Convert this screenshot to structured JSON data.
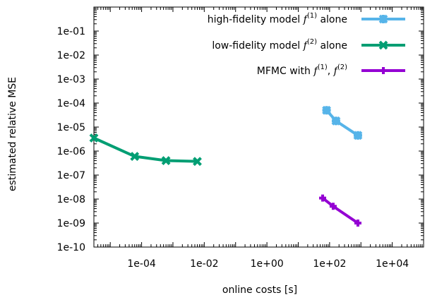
{
  "chart_data": {
    "type": "line",
    "title": "",
    "xlabel": "online costs [s]",
    "ylabel": "estimated relative MSE",
    "xscale": "log",
    "yscale": "log",
    "xlim": [
      3e-06,
      100000
    ],
    "ylim": [
      1e-10,
      1
    ],
    "x_ticks": [
      0.0001,
      0.01,
      1,
      100,
      10000
    ],
    "x_tick_labels": [
      "1e-04",
      "1e-02",
      "1e+00",
      "1e+02",
      "1e+04"
    ],
    "y_ticks": [
      1e-10,
      1e-09,
      1e-08,
      1e-07,
      1e-06,
      1e-05,
      0.0001,
      0.001,
      0.01,
      0.1
    ],
    "y_tick_labels": [
      "1e-10",
      "1e-09",
      "1e-08",
      "1e-07",
      "1e-06",
      "1e-05",
      "1e-04",
      "1e-03",
      "1e-02",
      "1e-01"
    ],
    "grid": false,
    "legend_position": "top-right",
    "series": [
      {
        "name": "high-fidelity model f(1) alone",
        "legend_text": "high-fidelity model ",
        "legend_math": "f",
        "legend_sup": "(1)",
        "legend_suffix": " alone",
        "color": "#56b4e9",
        "marker": "star",
        "points": [
          {
            "x": 80,
            "y": 5e-05
          },
          {
            "x": 160,
            "y": 1.8e-05
          },
          {
            "x": 800,
            "y": 4.5e-06
          }
        ]
      },
      {
        "name": "low-fidelity model f(2) alone",
        "legend_text": "low-fidelity model ",
        "legend_math": "f",
        "legend_sup": "(2)",
        "legend_suffix": " alone",
        "color": "#009e73",
        "marker": "x",
        "points": [
          {
            "x": 3e-06,
            "y": 3.5e-06
          },
          {
            "x": 6e-05,
            "y": 6e-07
          },
          {
            "x": 0.0006,
            "y": 4e-07
          },
          {
            "x": 0.006,
            "y": 3.7e-07
          }
        ]
      },
      {
        "name": "MFMC with f(1), f(2)",
        "legend_text": "MFMC with ",
        "legend_math": "f",
        "legend_sup": "(1)",
        "legend_mid": ", ",
        "legend_math2": "f",
        "legend_sup2": "(2)",
        "legend_suffix": "",
        "color": "#9400d3",
        "marker": "plus",
        "points": [
          {
            "x": 60,
            "y": 1.1e-08
          },
          {
            "x": 130,
            "y": 5e-09
          },
          {
            "x": 800,
            "y": 1e-09
          }
        ]
      }
    ]
  }
}
